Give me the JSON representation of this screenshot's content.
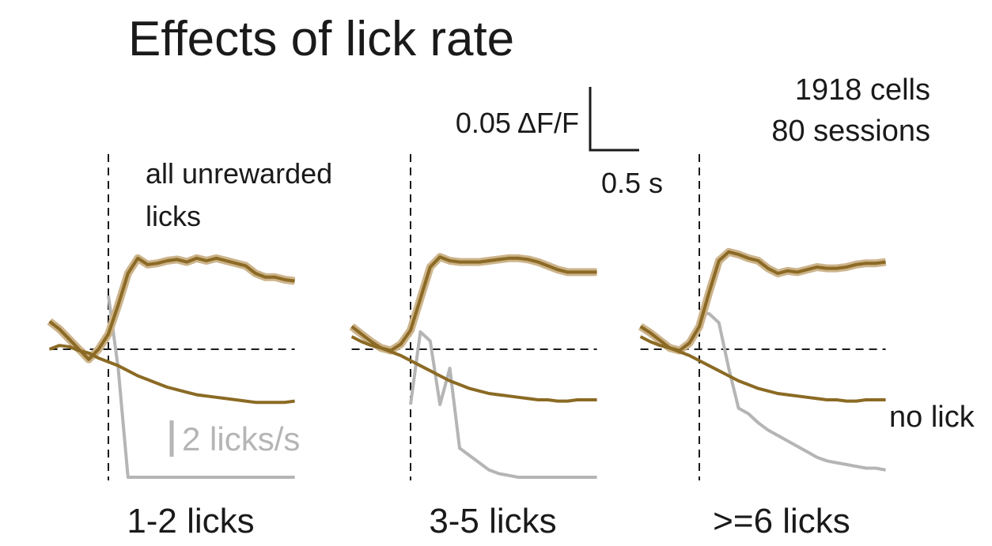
{
  "title": "Effects of lick rate",
  "annotation": "all unrewarded\nlicks",
  "cell_count": "1918 cells",
  "session_count": "80 sessions",
  "scalebar": {
    "y_label": "0.05 ΔF/F",
    "x_label": "0.5 s",
    "rate_label": "2 licks/s"
  },
  "no_lick_label": "no lick",
  "colors": {
    "activity": "#8b6a24",
    "activity_band": "#cdb48c",
    "lick_rate": "#b5b5b5",
    "axis": "#1a1a1a"
  },
  "chart_data": [
    {
      "type": "line",
      "title": "1-2 licks",
      "x": [
        -0.6,
        -0.5,
        -0.4,
        -0.3,
        -0.2,
        -0.1,
        0,
        0.1,
        0.2,
        0.3,
        0.4,
        0.5,
        0.6,
        0.7,
        0.8,
        0.9,
        1.0,
        1.1,
        1.2,
        1.3,
        1.4,
        1.5,
        1.6,
        1.7,
        1.8,
        1.9
      ],
      "series": [
        {
          "name": "",
          "values": [
            0.022,
            0.016,
            0.008,
            0.0,
            -0.008,
            0.0,
            0.012,
            0.035,
            0.06,
            0.072,
            0.067,
            0.068,
            0.07,
            0.071,
            0.069,
            0.072,
            0.07,
            0.072,
            0.07,
            0.068,
            0.066,
            0.06,
            0.057,
            0.057,
            0.055,
            0.054
          ]
        },
        {
          "name": "no lick",
          "values": [
            0.0,
            0.003,
            0.002,
            -0.001,
            -0.003,
            -0.007,
            -0.01,
            -0.013,
            -0.017,
            -0.021,
            -0.024,
            -0.027,
            -0.03,
            -0.032,
            -0.034,
            -0.036,
            -0.037,
            -0.038,
            -0.039,
            -0.04,
            -0.041,
            -0.042,
            -0.042,
            -0.042,
            -0.042,
            -0.041
          ]
        },
        {
          "name": "lick rate",
          "values": [
            null,
            null,
            null,
            null,
            null,
            null,
            10,
            6,
            0,
            0,
            0,
            0,
            0,
            0,
            0,
            0,
            0,
            0,
            0,
            0,
            0,
            0,
            0,
            0,
            0,
            0
          ]
        }
      ]
    },
    {
      "type": "line",
      "title": "3-5 licks",
      "x": [
        -0.6,
        -0.5,
        -0.4,
        -0.3,
        -0.2,
        -0.1,
        0,
        0.1,
        0.2,
        0.3,
        0.4,
        0.5,
        0.6,
        0.7,
        0.8,
        0.9,
        1.0,
        1.1,
        1.2,
        1.3,
        1.4,
        1.5,
        1.6,
        1.7,
        1.8,
        1.9
      ],
      "series": [
        {
          "name": "",
          "values": [
            0.018,
            0.012,
            0.006,
            0.001,
            -0.001,
            0.004,
            0.015,
            0.04,
            0.065,
            0.073,
            0.07,
            0.069,
            0.069,
            0.069,
            0.07,
            0.071,
            0.072,
            0.072,
            0.071,
            0.069,
            0.066,
            0.063,
            0.061,
            0.061,
            0.061,
            0.061
          ]
        },
        {
          "name": "no lick",
          "values": [
            0.01,
            0.006,
            0.003,
            0.001,
            -0.002,
            -0.005,
            -0.009,
            -0.013,
            -0.017,
            -0.021,
            -0.025,
            -0.028,
            -0.031,
            -0.033,
            -0.035,
            -0.036,
            -0.037,
            -0.038,
            -0.039,
            -0.04,
            -0.04,
            -0.041,
            -0.041,
            -0.04,
            -0.04,
            -0.04
          ]
        },
        {
          "name": "lick rate",
          "values": [
            null,
            null,
            null,
            null,
            null,
            null,
            4,
            8,
            7.5,
            4,
            6,
            1.6,
            1.2,
            0.8,
            0.4,
            0.2,
            0.1,
            0,
            0,
            0,
            0,
            0,
            0,
            0,
            0,
            0
          ]
        }
      ]
    },
    {
      "type": "line",
      "title": ">=6 licks",
      "x": [
        -0.6,
        -0.5,
        -0.4,
        -0.3,
        -0.2,
        -0.1,
        0,
        0.1,
        0.2,
        0.3,
        0.4,
        0.5,
        0.6,
        0.7,
        0.8,
        0.9,
        1.0,
        1.1,
        1.2,
        1.3,
        1.4,
        1.5,
        1.6,
        1.7,
        1.8,
        1.9
      ],
      "series": [
        {
          "name": "",
          "values": [
            0.018,
            0.013,
            0.007,
            0.001,
            -0.001,
            0.005,
            0.018,
            0.045,
            0.07,
            0.077,
            0.075,
            0.072,
            0.07,
            0.064,
            0.06,
            0.062,
            0.061,
            0.063,
            0.065,
            0.064,
            0.064,
            0.065,
            0.067,
            0.068,
            0.068,
            0.069
          ]
        },
        {
          "name": "no lick",
          "values": [
            0.01,
            0.006,
            0.003,
            0.001,
            -0.002,
            -0.005,
            -0.009,
            -0.013,
            -0.017,
            -0.021,
            -0.025,
            -0.028,
            -0.031,
            -0.033,
            -0.035,
            -0.036,
            -0.037,
            -0.038,
            -0.039,
            -0.04,
            -0.04,
            -0.041,
            -0.041,
            -0.04,
            -0.04,
            -0.04
          ]
        },
        {
          "name": "lick rate",
          "values": [
            null,
            null,
            null,
            null,
            null,
            null,
            9,
            9,
            8.5,
            6,
            3.8,
            3.5,
            3.0,
            2.6,
            2.3,
            2.0,
            1.7,
            1.4,
            1.1,
            0.9,
            0.8,
            0.7,
            0.6,
            0.5,
            0.5,
            0.4
          ]
        }
      ]
    }
  ]
}
